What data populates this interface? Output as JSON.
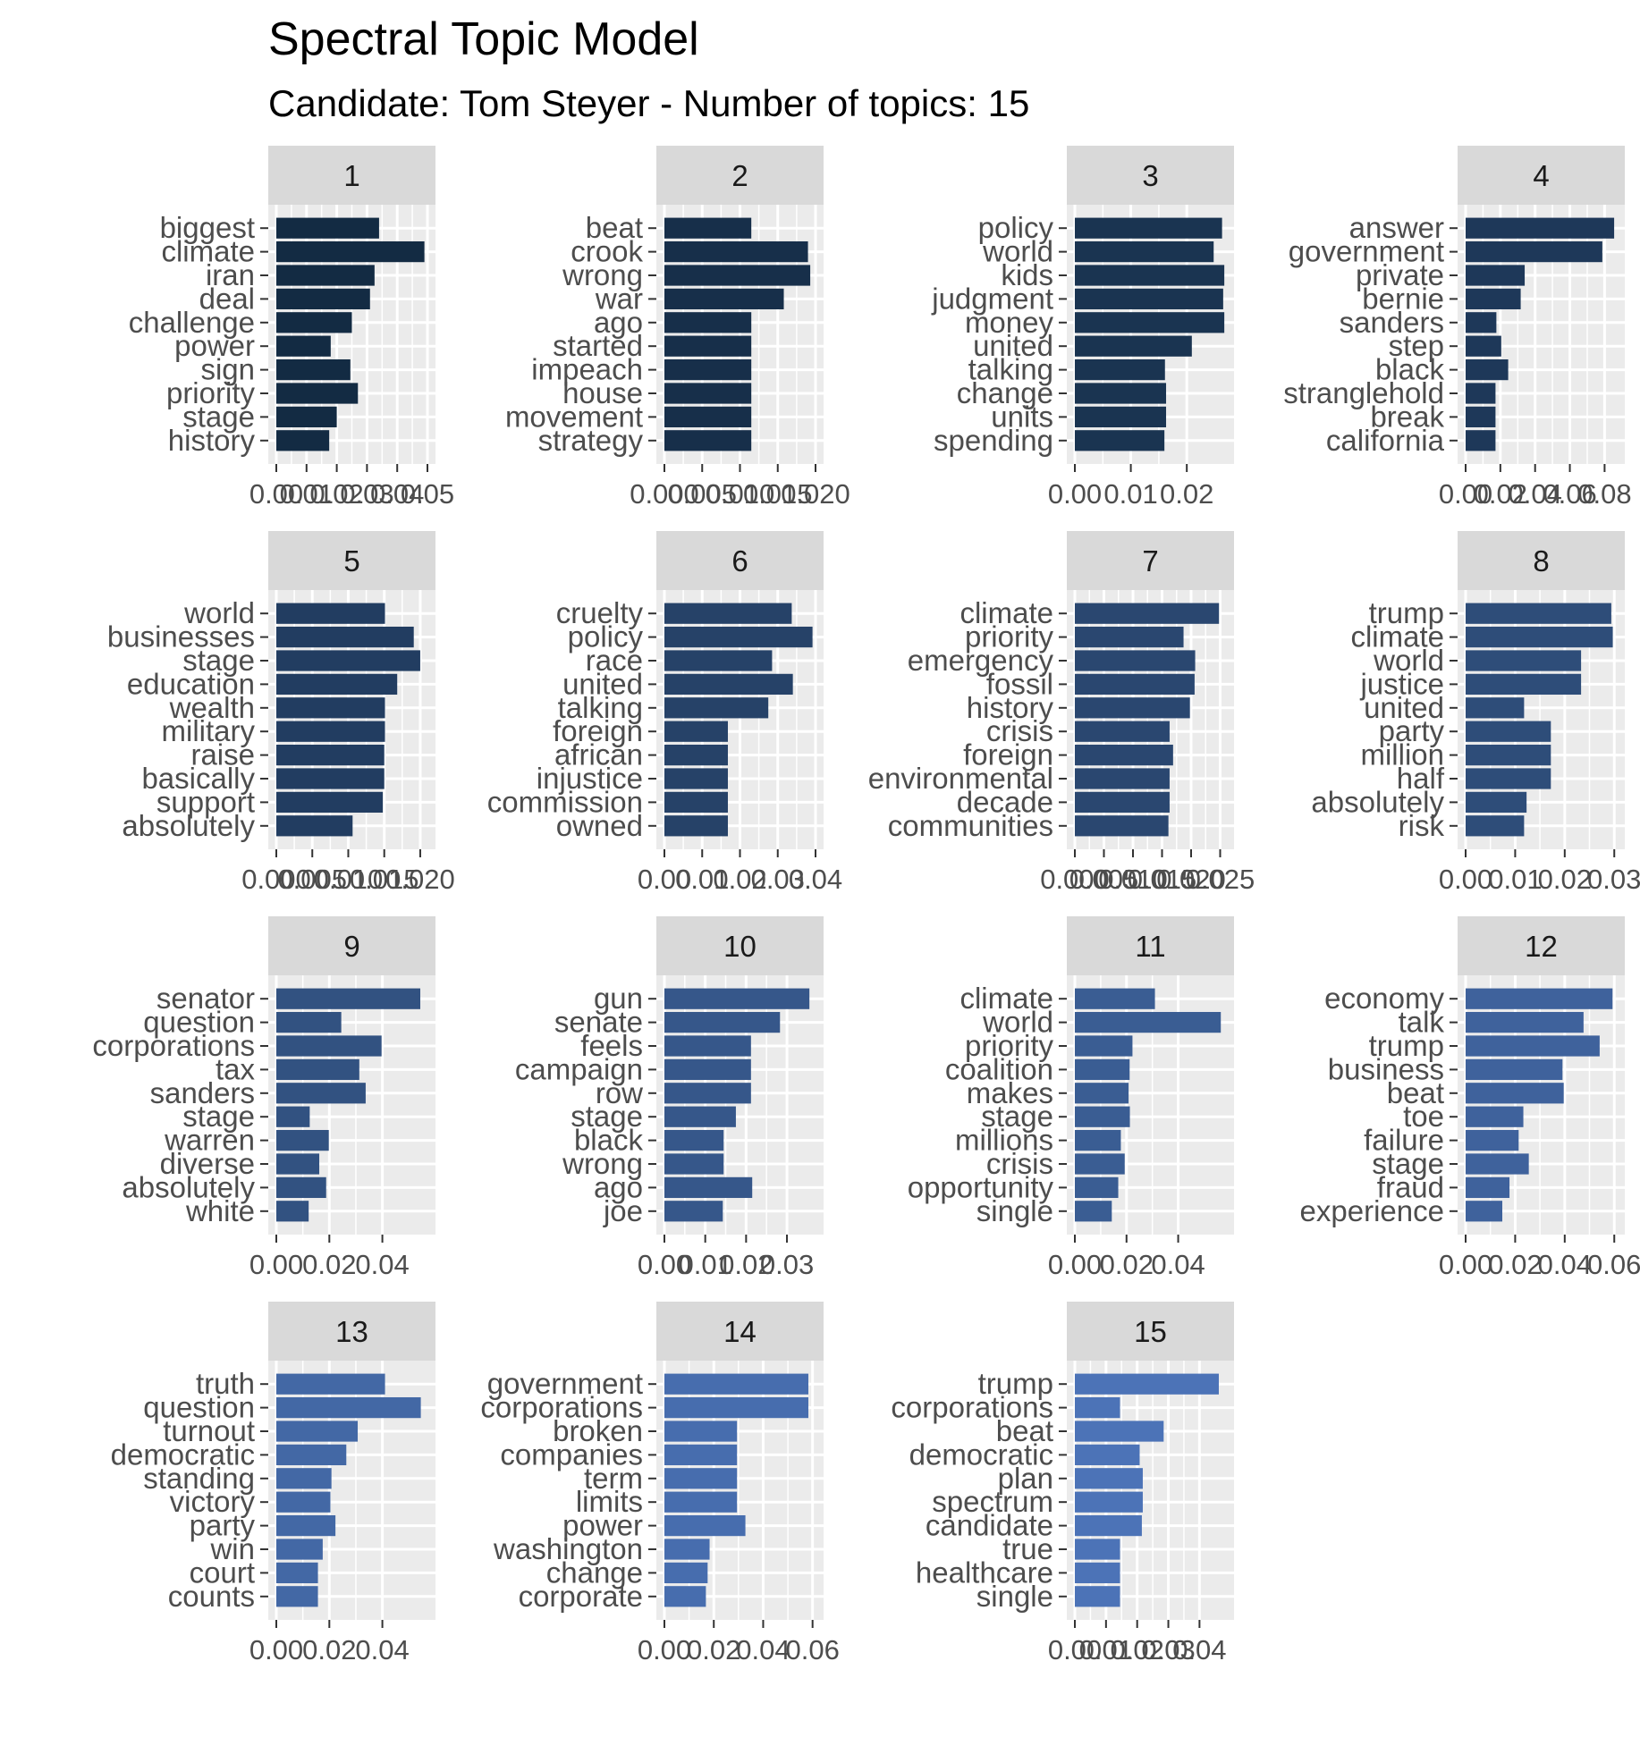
{
  "title": "Spectral Topic Model",
  "subtitle": "Candidate: Tom Steyer - Number of topics: 15",
  "colors": [
    "#132b43",
    "#172f4a",
    "#1a3451",
    "#1e3859",
    "#223d61",
    "#264268",
    "#2a4770",
    "#2e4d79",
    "#325281",
    "#36578a",
    "#3a5d93",
    "#3f629c",
    "#4368a5",
    "#476dae",
    "#4c73b7"
  ],
  "chart_data": [
    {
      "type": "bar",
      "panel": "1",
      "categories": [
        "biggest",
        "climate",
        "iran",
        "deal",
        "challenge",
        "power",
        "sign",
        "priority",
        "stage",
        "history"
      ],
      "values": [
        0.034,
        0.049,
        0.0325,
        0.031,
        0.025,
        0.018,
        0.0245,
        0.027,
        0.02,
        0.0175
      ],
      "ticks": [
        0.0,
        0.01,
        0.02,
        0.03,
        0.04,
        0.05
      ],
      "tick_labels": [
        "0.00",
        "0.01",
        "0.02",
        "0.03",
        "0.04",
        "0.05"
      ],
      "xlim": [
        0,
        0.05
      ]
    },
    {
      "type": "bar",
      "panel": "2",
      "categories": [
        "beat",
        "crook",
        "wrong",
        "war",
        "ago",
        "started",
        "impeach",
        "house",
        "movement",
        "strategy"
      ],
      "values": [
        0.0115,
        0.019,
        0.0193,
        0.0158,
        0.0115,
        0.0115,
        0.0115,
        0.0115,
        0.0115,
        0.0115
      ],
      "ticks": [
        0.0,
        0.005,
        0.01,
        0.015,
        0.02
      ],
      "tick_labels": [
        "0.000",
        "0.005",
        "0.010",
        "0.015",
        "0.020"
      ],
      "xlim": [
        0,
        0.02
      ]
    },
    {
      "type": "bar",
      "panel": "3",
      "categories": [
        "policy",
        "world",
        "kids",
        "judgment",
        "money",
        "united",
        "talking",
        "change",
        "units",
        "spending"
      ],
      "values": [
        0.0263,
        0.0248,
        0.0267,
        0.0265,
        0.0267,
        0.0209,
        0.0161,
        0.0163,
        0.0163,
        0.016
      ],
      "ticks": [
        0.0,
        0.01,
        0.02
      ],
      "tick_labels": [
        "0.00",
        "0.01",
        "0.02"
      ],
      "xlim": [
        0,
        0.027
      ]
    },
    {
      "type": "bar",
      "panel": "4",
      "categories": [
        "answer",
        "government",
        "private",
        "bernie",
        "sanders",
        "step",
        "black",
        "stranglehold",
        "break",
        "california"
      ],
      "values": [
        0.0855,
        0.0787,
        0.034,
        0.0317,
        0.0177,
        0.0205,
        0.0245,
        0.0172,
        0.0172,
        0.0172
      ],
      "ticks": [
        0.0,
        0.02,
        0.04,
        0.06,
        0.08
      ],
      "tick_labels": [
        "0.00",
        "0.02",
        "0.04",
        "0.06",
        "0.08"
      ],
      "xlim": [
        0,
        0.087
      ]
    },
    {
      "type": "bar",
      "panel": "5",
      "categories": [
        "world",
        "businesses",
        "stage",
        "education",
        "wealth",
        "military",
        "raise",
        "basically",
        "support",
        "absolutely"
      ],
      "values": [
        0.0151,
        0.0191,
        0.02,
        0.0168,
        0.0151,
        0.0151,
        0.015,
        0.015,
        0.0148,
        0.0106
      ],
      "ticks": [
        0.0,
        0.005,
        0.01,
        0.015,
        0.02
      ],
      "tick_labels": [
        "0.000",
        "0.005",
        "0.010",
        "0.015",
        "0.020"
      ],
      "xlim": [
        0,
        0.021
      ]
    },
    {
      "type": "bar",
      "panel": "6",
      "categories": [
        "cruelty",
        "policy",
        "race",
        "united",
        "talking",
        "foreign",
        "african",
        "injustice",
        "commission",
        "owned"
      ],
      "values": [
        0.0337,
        0.0392,
        0.0285,
        0.034,
        0.0275,
        0.0168,
        0.0168,
        0.0168,
        0.0168,
        0.0168
      ],
      "ticks": [
        0.0,
        0.01,
        0.02,
        0.03,
        0.04
      ],
      "tick_labels": [
        "0.00",
        "0.01",
        "0.02",
        "0.03",
        "0.04"
      ],
      "xlim": [
        0,
        0.04
      ]
    },
    {
      "type": "bar",
      "panel": "7",
      "categories": [
        "climate",
        "priority",
        "emergency",
        "fossil",
        "history",
        "crisis",
        "foreign",
        "environmental",
        "decade",
        "communities"
      ],
      "values": [
        0.0248,
        0.0187,
        0.0207,
        0.0206,
        0.0198,
        0.0163,
        0.0169,
        0.0163,
        0.0163,
        0.0161
      ],
      "ticks": [
        0.0,
        0.005,
        0.01,
        0.015,
        0.02,
        0.025
      ],
      "tick_labels": [
        "0.000",
        "0.005",
        "0.010",
        "0.015",
        "0.020",
        "0.025"
      ],
      "xlim": [
        0,
        0.026
      ]
    },
    {
      "type": "bar",
      "panel": "8",
      "categories": [
        "trump",
        "climate",
        "world",
        "justice",
        "united",
        "party",
        "million",
        "half",
        "absolutely",
        "risk"
      ],
      "values": [
        0.0294,
        0.0297,
        0.0233,
        0.0233,
        0.0118,
        0.0172,
        0.0172,
        0.0172,
        0.0123,
        0.0118
      ],
      "ticks": [
        0.0,
        0.01,
        0.02,
        0.03
      ],
      "tick_labels": [
        "0.00",
        "0.01",
        "0.02",
        "0.03"
      ],
      "xlim": [
        0,
        0.0305
      ]
    },
    {
      "type": "bar",
      "panel": "9",
      "categories": [
        "senator",
        "question",
        "corporations",
        "tax",
        "sanders",
        "stage",
        "warren",
        "diverse",
        "absolutely",
        "white"
      ],
      "values": [
        0.0543,
        0.0245,
        0.0397,
        0.0313,
        0.0337,
        0.0126,
        0.0198,
        0.0162,
        0.0188,
        0.0122
      ],
      "ticks": [
        0.0,
        0.02,
        0.04
      ],
      "tick_labels": [
        "0.00",
        "0.02",
        "0.04"
      ],
      "xlim": [
        0,
        0.057
      ]
    },
    {
      "type": "bar",
      "panel": "10",
      "categories": [
        "gun",
        "senate",
        "feels",
        "campaign",
        "row",
        "stage",
        "black",
        "wrong",
        "ago",
        "joe"
      ],
      "values": [
        0.0355,
        0.0283,
        0.0212,
        0.0212,
        0.0212,
        0.0175,
        0.0145,
        0.0145,
        0.0215,
        0.0143
      ],
      "ticks": [
        0.0,
        0.01,
        0.02,
        0.03
      ],
      "tick_labels": [
        "0.00",
        "0.01",
        "0.02",
        "0.03"
      ],
      "xlim": [
        0,
        0.037
      ]
    },
    {
      "type": "bar",
      "panel": "11",
      "categories": [
        "climate",
        "world",
        "priority",
        "coalition",
        "makes",
        "stage",
        "millions",
        "crisis",
        "opportunity",
        "single"
      ],
      "values": [
        0.031,
        0.0565,
        0.0223,
        0.0212,
        0.0208,
        0.0213,
        0.0178,
        0.0193,
        0.0168,
        0.0143
      ],
      "ticks": [
        0.0,
        0.02,
        0.04
      ],
      "tick_labels": [
        "0.00",
        "0.02",
        "0.04"
      ],
      "xlim": [
        0,
        0.0585
      ]
    },
    {
      "type": "bar",
      "panel": "12",
      "categories": [
        "economy",
        "talk",
        "trump",
        "business",
        "beat",
        "toe",
        "failure",
        "stage",
        "fraud",
        "experience"
      ],
      "values": [
        0.0593,
        0.0476,
        0.0541,
        0.0391,
        0.0396,
        0.0233,
        0.0214,
        0.0255,
        0.0177,
        0.0148
      ],
      "ticks": [
        0.0,
        0.02,
        0.04,
        0.06
      ],
      "tick_labels": [
        "0.00",
        "0.02",
        "0.04",
        "0.06"
      ],
      "xlim": [
        0,
        0.061
      ]
    },
    {
      "type": "bar",
      "panel": "13",
      "categories": [
        "truth",
        "question",
        "turnout",
        "democratic",
        "standing",
        "victory",
        "party",
        "win",
        "court",
        "counts"
      ],
      "values": [
        0.041,
        0.0545,
        0.0307,
        0.0264,
        0.0208,
        0.0204,
        0.0223,
        0.0175,
        0.0157,
        0.0157
      ],
      "ticks": [
        0.0,
        0.02,
        0.04
      ],
      "tick_labels": [
        "0.00",
        "0.02",
        "0.04"
      ],
      "xlim": [
        0,
        0.057
      ]
    },
    {
      "type": "bar",
      "panel": "14",
      "categories": [
        "government",
        "corporations",
        "broken",
        "companies",
        "term",
        "limits",
        "power",
        "washington",
        "change",
        "corporate"
      ],
      "values": [
        0.0583,
        0.0583,
        0.0294,
        0.0294,
        0.0294,
        0.0294,
        0.0328,
        0.0183,
        0.0175,
        0.0168
      ],
      "ticks": [
        0.0,
        0.02,
        0.04,
        0.06
      ],
      "tick_labels": [
        "0.00",
        "0.02",
        "0.04",
        "0.06"
      ],
      "xlim": [
        0,
        0.0612
      ]
    },
    {
      "type": "bar",
      "panel": "15",
      "categories": [
        "trump",
        "corporations",
        "beat",
        "democratic",
        "plan",
        "spectrum",
        "candidate",
        "true",
        "healthcare",
        "single"
      ],
      "values": [
        0.0462,
        0.0145,
        0.0285,
        0.0208,
        0.0218,
        0.0218,
        0.0215,
        0.0145,
        0.0145,
        0.0145
      ],
      "ticks": [
        0.0,
        0.01,
        0.02,
        0.03,
        0.04
      ],
      "tick_labels": [
        "0.00",
        "0.01",
        "0.02",
        "0.03",
        "0.04"
      ],
      "xlim": [
        0,
        0.0485
      ]
    }
  ]
}
